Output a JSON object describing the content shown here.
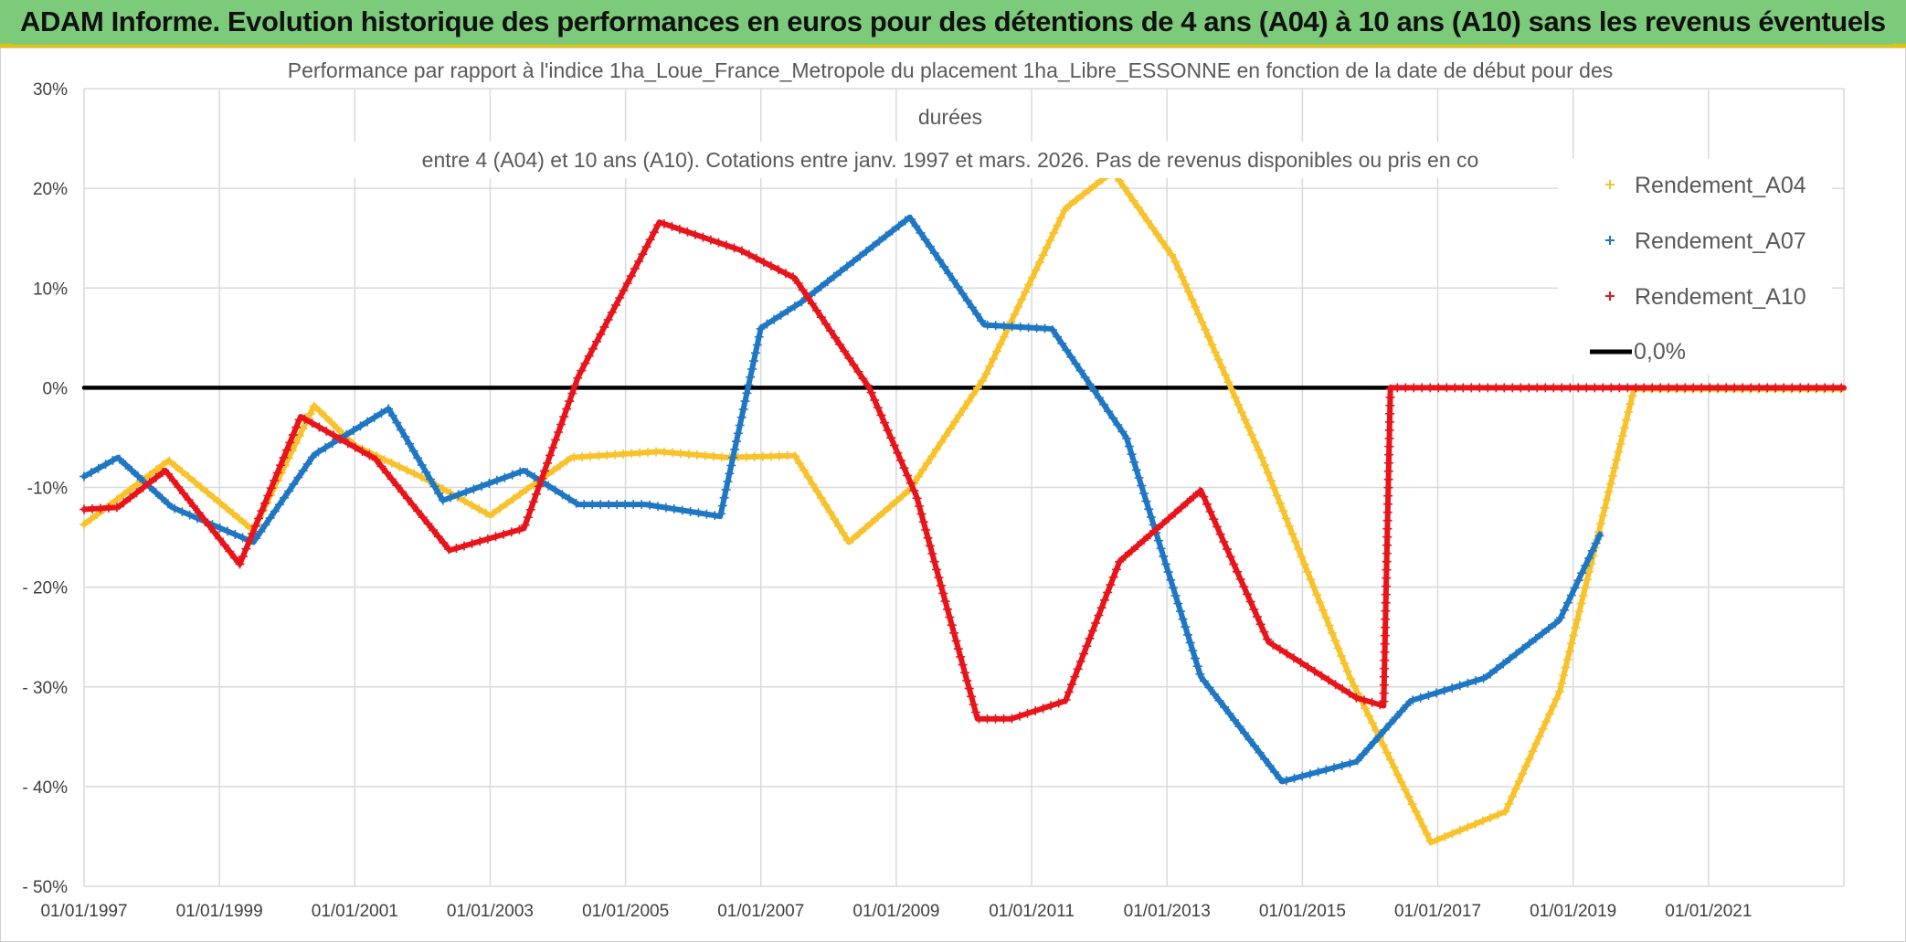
{
  "header": {
    "title": "ADAM Informe. Evolution historique des performances en euros pour des détentions de 4 ans (A04) à 10 ans (A10) sans les revenus éventuels"
  },
  "chart_data": {
    "type": "line",
    "title_lines": [
      "Performance par rapport à l'indice 1ha_Loue_France_Metropole  du placement 1ha_Libre_ESSONNE en fonction de la date de début pour des",
      "durées",
      "entre 4 (A04) et 10 ans (A10). Cotations entre janv. 1997 et mars. 2026. Pas de revenus disponibles ou pris en co"
    ],
    "xlabel": "",
    "ylabel": "",
    "x_range": [
      1997.0,
      2023.0
    ],
    "ylim": [
      -50,
      30
    ],
    "x_tick_labels": [
      "01/01/1997",
      "01/01/1999",
      "01/01/2001",
      "01/01/2003",
      "01/01/2005",
      "01/01/2007",
      "01/01/2009",
      "01/01/2011",
      "01/01/2013",
      "01/01/2015",
      "01/01/2017",
      "01/01/2019",
      "01/01/2021"
    ],
    "x_tick_values": [
      1997,
      1999,
      2001,
      2003,
      2005,
      2007,
      2009,
      2011,
      2013,
      2015,
      2017,
      2019,
      2021
    ],
    "y_tick_labels": [
      "30%",
      "20%",
      "10%",
      "0%",
      "-10%",
      "- 20%",
      "- 30%",
      "- 40%",
      "- 50%"
    ],
    "y_tick_values": [
      30,
      20,
      10,
      0,
      -10,
      -20,
      -30,
      -40,
      -50
    ],
    "grid": true,
    "legend_position": "right",
    "series": [
      {
        "name": "Rendement_A04",
        "color": "#f7c22b",
        "marker": "+",
        "x": [
          1997.0,
          1998.25,
          1999.5,
          2000.4,
          2001.0,
          2002.0,
          2003.0,
          2004.2,
          2005.5,
          2006.5,
          2007.5,
          2008.3,
          2009.2,
          2010.3,
          2011.5,
          2012.2,
          2013.1,
          2014.4,
          2015.7,
          2016.9,
          2018.0,
          2018.8,
          2019.9,
          2023.0
        ],
        "y": [
          -13.7,
          -7.3,
          -14.3,
          -1.8,
          -5.8,
          -9.0,
          -12.8,
          -7.0,
          -6.4,
          -7.0,
          -6.8,
          -15.5,
          -10.2,
          1.0,
          18.0,
          21.7,
          13.0,
          -7.0,
          -29.0,
          -45.6,
          -42.5,
          -30.5,
          -0.1,
          -0.1
        ]
      },
      {
        "name": "Rendement_A07",
        "color": "#1f77c4",
        "marker": "+",
        "x": [
          1997.0,
          1997.5,
          1998.3,
          1999.5,
          2000.4,
          2001.5,
          2002.3,
          2003.5,
          2004.3,
          2005.3,
          2006.4,
          2007.0,
          2007.6,
          2009.2,
          2010.3,
          2011.3,
          2012.4,
          2013.5,
          2014.7,
          2015.8,
          2016.6,
          2017.7,
          2018.8,
          2019.4
        ],
        "y": [
          -8.9,
          -7.0,
          -12.0,
          -15.5,
          -6.7,
          -2.1,
          -11.3,
          -8.3,
          -11.7,
          -11.7,
          -12.9,
          6.0,
          8.6,
          17.1,
          6.3,
          5.9,
          -5.0,
          -29.0,
          -39.5,
          -37.5,
          -31.4,
          -29.1,
          -23.3,
          -14.7
        ]
      },
      {
        "name": "Rendement_A10",
        "color": "#e8141b",
        "marker": "+",
        "x": [
          1997.0,
          1997.5,
          1998.2,
          1999.3,
          2000.2,
          2001.3,
          2002.4,
          2003.5,
          2004.3,
          2005.5,
          2006.7,
          2007.5,
          2008.6,
          2009.3,
          2010.2,
          2010.7,
          2011.5,
          2012.3,
          2013.5,
          2014.5,
          2015.8,
          2016.2,
          2016.3,
          2023.0
        ],
        "y": [
          -12.2,
          -12.0,
          -8.3,
          -17.7,
          -2.9,
          -7.1,
          -16.3,
          -14.1,
          1.1,
          16.6,
          13.8,
          11.0,
          0.0,
          -10.9,
          -33.2,
          -33.2,
          -31.4,
          -17.4,
          -10.3,
          -25.5,
          -31.1,
          -31.9,
          0.0,
          0.0
        ]
      },
      {
        "name": "0,0%",
        "color": "#000000",
        "marker": "none",
        "x": [
          1997.0,
          2023.0
        ],
        "y": [
          0,
          0
        ]
      }
    ]
  }
}
